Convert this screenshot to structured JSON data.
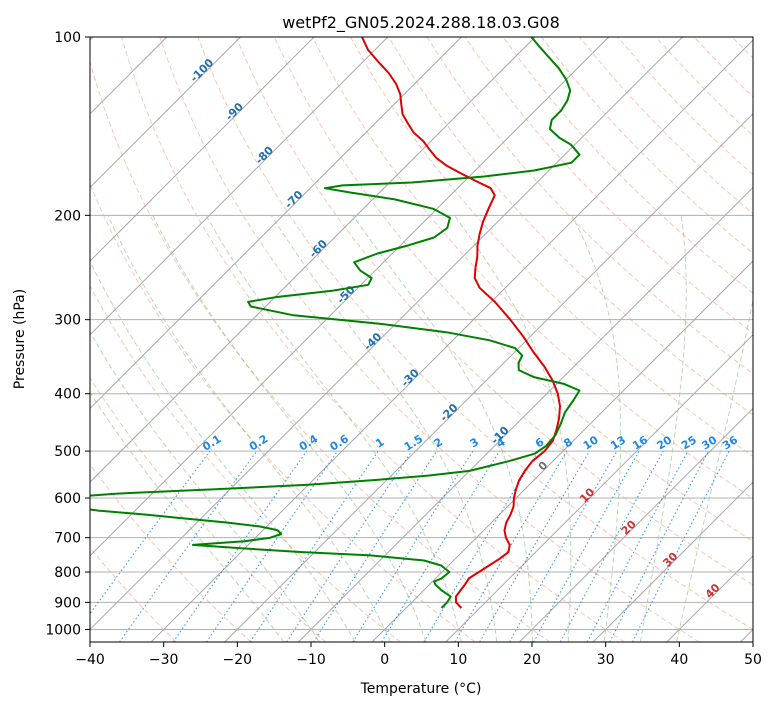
{
  "chart_data": {
    "type": "line",
    "title": "wetPf2_GN05.2024.288.18.03.G08",
    "xlabel": "Temperature (°C)",
    "ylabel": "Pressure (hPa)",
    "xlim": [
      -40,
      50
    ],
    "ylim": [
      1050,
      100
    ],
    "y_scale": "log",
    "grid": true,
    "x_ticks": [
      "-40",
      "-30",
      "-20",
      "-10",
      "0",
      "10",
      "20",
      "30",
      "40",
      "50"
    ],
    "y_ticks": [
      "100",
      "200",
      "300",
      "400",
      "500",
      "600",
      "700",
      "800",
      "900",
      "1000"
    ],
    "skew_lines": {
      "x_at_1000": [
        -200,
        -190,
        -180,
        -170,
        -160,
        -150,
        -140,
        -130,
        -120,
        -110,
        -100,
        -90,
        -80,
        -70,
        -60,
        -50,
        -40,
        -30,
        -20,
        -10,
        0,
        10,
        20,
        30,
        40,
        50
      ]
    },
    "dry_adiabats": {
      "theta_c": [
        -30,
        -20,
        -10,
        0,
        10,
        20,
        30,
        40,
        50,
        60,
        70,
        80,
        90,
        100,
        110,
        120,
        130,
        140,
        150,
        160,
        170,
        180,
        190,
        200,
        210,
        220,
        230,
        240,
        250
      ],
      "color": "#f47c5c"
    },
    "moist_adiabats": {
      "theta_w_c": [
        -15,
        -10,
        -5,
        0,
        5,
        10,
        15,
        20,
        25,
        30,
        35,
        40
      ],
      "color": "#5aaa5a"
    },
    "mixing_ratio": {
      "values": [
        "0.1",
        "0.2",
        "0.4",
        "0.6",
        "1",
        "1.5",
        "2",
        "3",
        "4",
        "6",
        "8",
        "10",
        "13",
        "16",
        "20",
        "25",
        "30",
        "36"
      ],
      "label_pressure": 490,
      "color": "#1e88e5"
    },
    "isotherm_labels": {
      "blue": [
        "-100",
        "-90",
        "-80",
        "-70",
        "-60",
        "-50",
        "-40",
        "-30",
        "-20",
        "-10"
      ],
      "gray": [
        "0"
      ],
      "red": [
        "10",
        "20",
        "30",
        "40"
      ]
    },
    "series": [
      {
        "color": "#e00000",
        "points": [
          [
            920,
            7.5
          ],
          [
            900,
            6.0
          ],
          [
            880,
            5.2
          ],
          [
            860,
            5.0
          ],
          [
            840,
            4.8
          ],
          [
            820,
            4.5
          ],
          [
            800,
            5.0
          ],
          [
            780,
            5.5
          ],
          [
            760,
            6.0
          ],
          [
            740,
            6.3
          ],
          [
            720,
            5.5
          ],
          [
            700,
            4.0
          ],
          [
            680,
            2.8
          ],
          [
            660,
            2.0
          ],
          [
            640,
            1.5
          ],
          [
            620,
            0.8
          ],
          [
            600,
            -0.3
          ],
          [
            580,
            -1.2
          ],
          [
            560,
            -2.0
          ],
          [
            540,
            -2.5
          ],
          [
            520,
            -2.8
          ],
          [
            500,
            -2.5
          ],
          [
            480,
            -2.8
          ],
          [
            460,
            -3.8
          ],
          [
            440,
            -5.0
          ],
          [
            420,
            -6.5
          ],
          [
            400,
            -8.5
          ],
          [
            380,
            -11.0
          ],
          [
            360,
            -14.0
          ],
          [
            340,
            -17.5
          ],
          [
            320,
            -21.0
          ],
          [
            300,
            -25.0
          ],
          [
            280,
            -29.5
          ],
          [
            265,
            -33.5
          ],
          [
            255,
            -35.5
          ],
          [
            245,
            -36.8
          ],
          [
            235,
            -38.0
          ],
          [
            225,
            -39.5
          ],
          [
            215,
            -40.8
          ],
          [
            205,
            -42.0
          ],
          [
            195,
            -43.0
          ],
          [
            185,
            -44.0
          ],
          [
            180,
            -45.5
          ],
          [
            175,
            -48.5
          ],
          [
            170,
            -51.5
          ],
          [
            165,
            -54.5
          ],
          [
            160,
            -57.0
          ],
          [
            155,
            -59.0
          ],
          [
            150,
            -61.0
          ],
          [
            145,
            -63.5
          ],
          [
            140,
            -65.5
          ],
          [
            135,
            -67.5
          ],
          [
            130,
            -69.0
          ],
          [
            125,
            -70.5
          ],
          [
            120,
            -72.5
          ],
          [
            115,
            -75.0
          ],
          [
            110,
            -78.0
          ],
          [
            105,
            -81.0
          ],
          [
            100,
            -83.5
          ]
        ]
      },
      {
        "color": "#008000",
        "points": [
          [
            920,
            4.8
          ],
          [
            900,
            4.8
          ],
          [
            880,
            4.5
          ],
          [
            860,
            2.5
          ],
          [
            840,
            0.8
          ],
          [
            830,
            0.2
          ],
          [
            820,
            0.8
          ],
          [
            800,
            1.0
          ],
          [
            780,
            -1.0
          ],
          [
            765,
            -4.0
          ],
          [
            750,
            -12.0
          ],
          [
            740,
            -22.0
          ],
          [
            730,
            -30.0
          ],
          [
            720,
            -37.5
          ],
          [
            710,
            -31.0
          ],
          [
            700,
            -28.0
          ],
          [
            690,
            -27.0
          ],
          [
            680,
            -28.0
          ],
          [
            670,
            -31.0
          ],
          [
            660,
            -36.0
          ],
          [
            650,
            -42.0
          ],
          [
            640,
            -48.0
          ],
          [
            630,
            -55.0
          ],
          [
            620,
            -60.0
          ],
          [
            610,
            -64.0
          ],
          [
            600,
            -62.0
          ],
          [
            590,
            -55.0
          ],
          [
            580,
            -42.0
          ],
          [
            570,
            -30.0
          ],
          [
            560,
            -22.0
          ],
          [
            550,
            -15.0
          ],
          [
            540,
            -10.0
          ],
          [
            520,
            -6.0
          ],
          [
            505,
            -3.5
          ],
          [
            490,
            -3.0
          ],
          [
            470,
            -3.2
          ],
          [
            450,
            -4.0
          ],
          [
            430,
            -5.0
          ],
          [
            410,
            -5.5
          ],
          [
            395,
            -6.0
          ],
          [
            385,
            -9.0
          ],
          [
            375,
            -14.0
          ],
          [
            365,
            -17.0
          ],
          [
            355,
            -18.0
          ],
          [
            345,
            -18.5
          ],
          [
            335,
            -20.5
          ],
          [
            325,
            -25.0
          ],
          [
            315,
            -32.0
          ],
          [
            305,
            -42.0
          ],
          [
            295,
            -55.0
          ],
          [
            285,
            -62.0
          ],
          [
            280,
            -63.0
          ],
          [
            275,
            -60.0
          ],
          [
            268,
            -53.0
          ],
          [
            262,
            -49.0
          ],
          [
            255,
            -49.5
          ],
          [
            248,
            -52.0
          ],
          [
            240,
            -54.0
          ],
          [
            232,
            -52.0
          ],
          [
            225,
            -49.0
          ],
          [
            218,
            -46.5
          ],
          [
            210,
            -46.0
          ],
          [
            202,
            -47.0
          ],
          [
            195,
            -50.5
          ],
          [
            188,
            -57.0
          ],
          [
            183,
            -64.0
          ],
          [
            180,
            -68.0
          ],
          [
            178,
            -66.0
          ],
          [
            176,
            -57.0
          ],
          [
            172,
            -48.0
          ],
          [
            168,
            -42.0
          ],
          [
            163,
            -38.0
          ],
          [
            158,
            -38.0
          ],
          [
            152,
            -40.5
          ],
          [
            148,
            -43.0
          ],
          [
            143,
            -45.5
          ],
          [
            138,
            -46.5
          ],
          [
            133,
            -46.5
          ],
          [
            128,
            -47.0
          ],
          [
            123,
            -48.0
          ],
          [
            118,
            -50.0
          ],
          [
            113,
            -52.5
          ],
          [
            108,
            -55.5
          ],
          [
            104,
            -58.0
          ],
          [
            100,
            -60.5
          ]
        ]
      }
    ]
  }
}
